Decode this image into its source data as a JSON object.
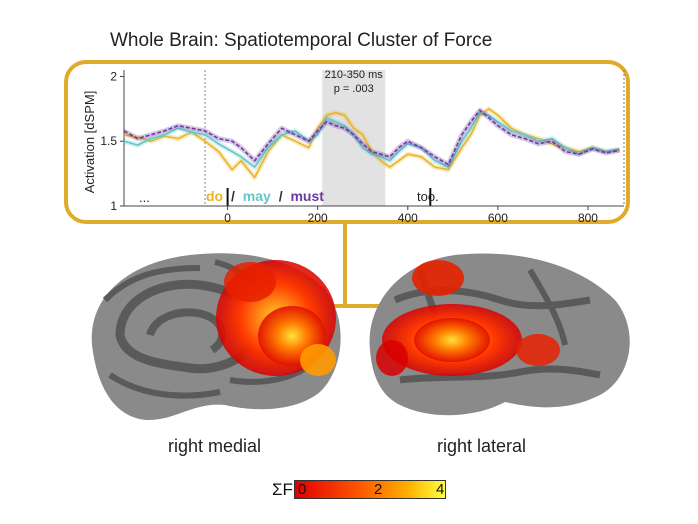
{
  "figure": {
    "title": "Whole Brain: Spatiotemporal Cluster of Force",
    "window_label": "210-350 ms",
    "p_label": "p = .003",
    "event_labels": {
      "pre": "...",
      "do": "do",
      "sep1": "/",
      "may": "may",
      "sep2": "/",
      "must": "must",
      "too": "too."
    },
    "captions": {
      "left": "right medial",
      "right": "right lateral"
    },
    "colorbar": {
      "label": "ΣF",
      "ticks": [
        "0",
        "2",
        "4"
      ],
      "range": [
        0,
        4
      ],
      "colors": [
        "#e00000",
        "#ff5a00",
        "#ffb000",
        "#ffff40"
      ]
    },
    "colors": {
      "frame": "#e0ab2a",
      "do": "#e8b528",
      "may": "#64c6cc",
      "must": "#6c3aa0"
    }
  },
  "chart_data": {
    "type": "line",
    "ylabel": "Activation [dSPM]",
    "xlim": [
      -230,
      880
    ],
    "ylim": [
      1,
      2.05
    ],
    "xticks": [
      0,
      200,
      400,
      600,
      800
    ],
    "yticks": [
      1,
      1.5,
      2
    ],
    "shaded_window": [
      210,
      350
    ],
    "event_markers": [
      0,
      450
    ],
    "series": [
      {
        "name": "do",
        "x": [
          -230,
          -200,
          -170,
          -140,
          -110,
          -80,
          -50,
          -20,
          10,
          30,
          60,
          90,
          120,
          150,
          180,
          200,
          220,
          240,
          260,
          280,
          300,
          320,
          340,
          360,
          380,
          400,
          430,
          460,
          490,
          520,
          540,
          560,
          580,
          600,
          630,
          660,
          690,
          720,
          750,
          780,
          810,
          840,
          870
        ],
        "y": [
          1.55,
          1.53,
          1.5,
          1.54,
          1.52,
          1.57,
          1.5,
          1.42,
          1.28,
          1.35,
          1.22,
          1.42,
          1.55,
          1.5,
          1.45,
          1.6,
          1.7,
          1.72,
          1.7,
          1.6,
          1.55,
          1.42,
          1.35,
          1.3,
          1.35,
          1.4,
          1.38,
          1.3,
          1.28,
          1.45,
          1.55,
          1.7,
          1.75,
          1.7,
          1.6,
          1.55,
          1.52,
          1.48,
          1.45,
          1.42,
          1.45,
          1.42,
          1.43
        ]
      },
      {
        "name": "may",
        "x": [
          -230,
          -200,
          -170,
          -140,
          -110,
          -80,
          -50,
          -20,
          10,
          30,
          60,
          90,
          120,
          150,
          180,
          200,
          220,
          240,
          260,
          280,
          300,
          320,
          340,
          360,
          380,
          400,
          430,
          460,
          490,
          520,
          540,
          560,
          580,
          600,
          630,
          660,
          690,
          720,
          750,
          780,
          810,
          840,
          870
        ],
        "y": [
          1.5,
          1.47,
          1.52,
          1.55,
          1.6,
          1.57,
          1.55,
          1.48,
          1.42,
          1.38,
          1.3,
          1.45,
          1.55,
          1.58,
          1.5,
          1.55,
          1.68,
          1.65,
          1.62,
          1.55,
          1.45,
          1.4,
          1.38,
          1.35,
          1.42,
          1.48,
          1.45,
          1.35,
          1.3,
          1.5,
          1.6,
          1.72,
          1.7,
          1.65,
          1.58,
          1.55,
          1.5,
          1.52,
          1.45,
          1.4,
          1.45,
          1.42,
          1.44
        ]
      },
      {
        "name": "must",
        "x": [
          -230,
          -200,
          -170,
          -140,
          -110,
          -80,
          -50,
          -20,
          10,
          30,
          60,
          90,
          120,
          150,
          180,
          200,
          220,
          240,
          260,
          280,
          300,
          320,
          340,
          360,
          380,
          400,
          430,
          460,
          490,
          520,
          540,
          560,
          580,
          600,
          630,
          660,
          690,
          720,
          750,
          780,
          810,
          840,
          870
        ],
        "y": [
          1.58,
          1.52,
          1.55,
          1.58,
          1.62,
          1.6,
          1.58,
          1.52,
          1.5,
          1.45,
          1.35,
          1.48,
          1.6,
          1.55,
          1.5,
          1.58,
          1.65,
          1.62,
          1.6,
          1.55,
          1.48,
          1.42,
          1.4,
          1.38,
          1.45,
          1.5,
          1.45,
          1.38,
          1.32,
          1.55,
          1.65,
          1.74,
          1.68,
          1.62,
          1.55,
          1.52,
          1.48,
          1.5,
          1.42,
          1.4,
          1.44,
          1.41,
          1.43
        ]
      }
    ]
  }
}
